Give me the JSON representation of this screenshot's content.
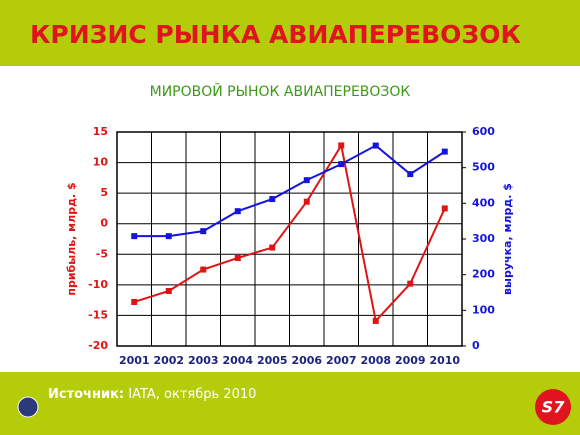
{
  "slide_title": "КРИЗИС РЫНКА АВИАПЕРЕВОЗОК",
  "source_label": "Источник:",
  "source_text": "IATA, октябрь 2010",
  "logo_text": "S7",
  "chart_data": {
    "type": "line",
    "title": "МИРОВОЙ РЫНОК АВИАПЕРЕВОЗОК",
    "categories": [
      "2001",
      "2002",
      "2003",
      "2004",
      "2005",
      "2006",
      "2007",
      "2008",
      "2009",
      "2010"
    ],
    "series": [
      {
        "name": "прибыль, млрд. $",
        "color": "#e01414",
        "values": [
          -12.8,
          -11,
          -7.5,
          -5.6,
          -3.9,
          3.6,
          12.8,
          -15.9,
          -9.8,
          2.5
        ]
      },
      {
        "name": "выручка, млрд. $",
        "color": "#1414dc",
        "axis": "y2",
        "values": [
          308,
          308,
          322,
          378,
          412,
          465,
          510,
          562,
          482,
          545
        ]
      }
    ],
    "ylim": [
      -20,
      15
    ],
    "yticks": [
      -20,
      -15,
      -10,
      -5,
      0,
      5,
      10,
      15
    ],
    "y2lim": [
      0,
      600
    ],
    "y2ticks": [
      0,
      100,
      200,
      300,
      400,
      500,
      600
    ],
    "grid": true
  }
}
